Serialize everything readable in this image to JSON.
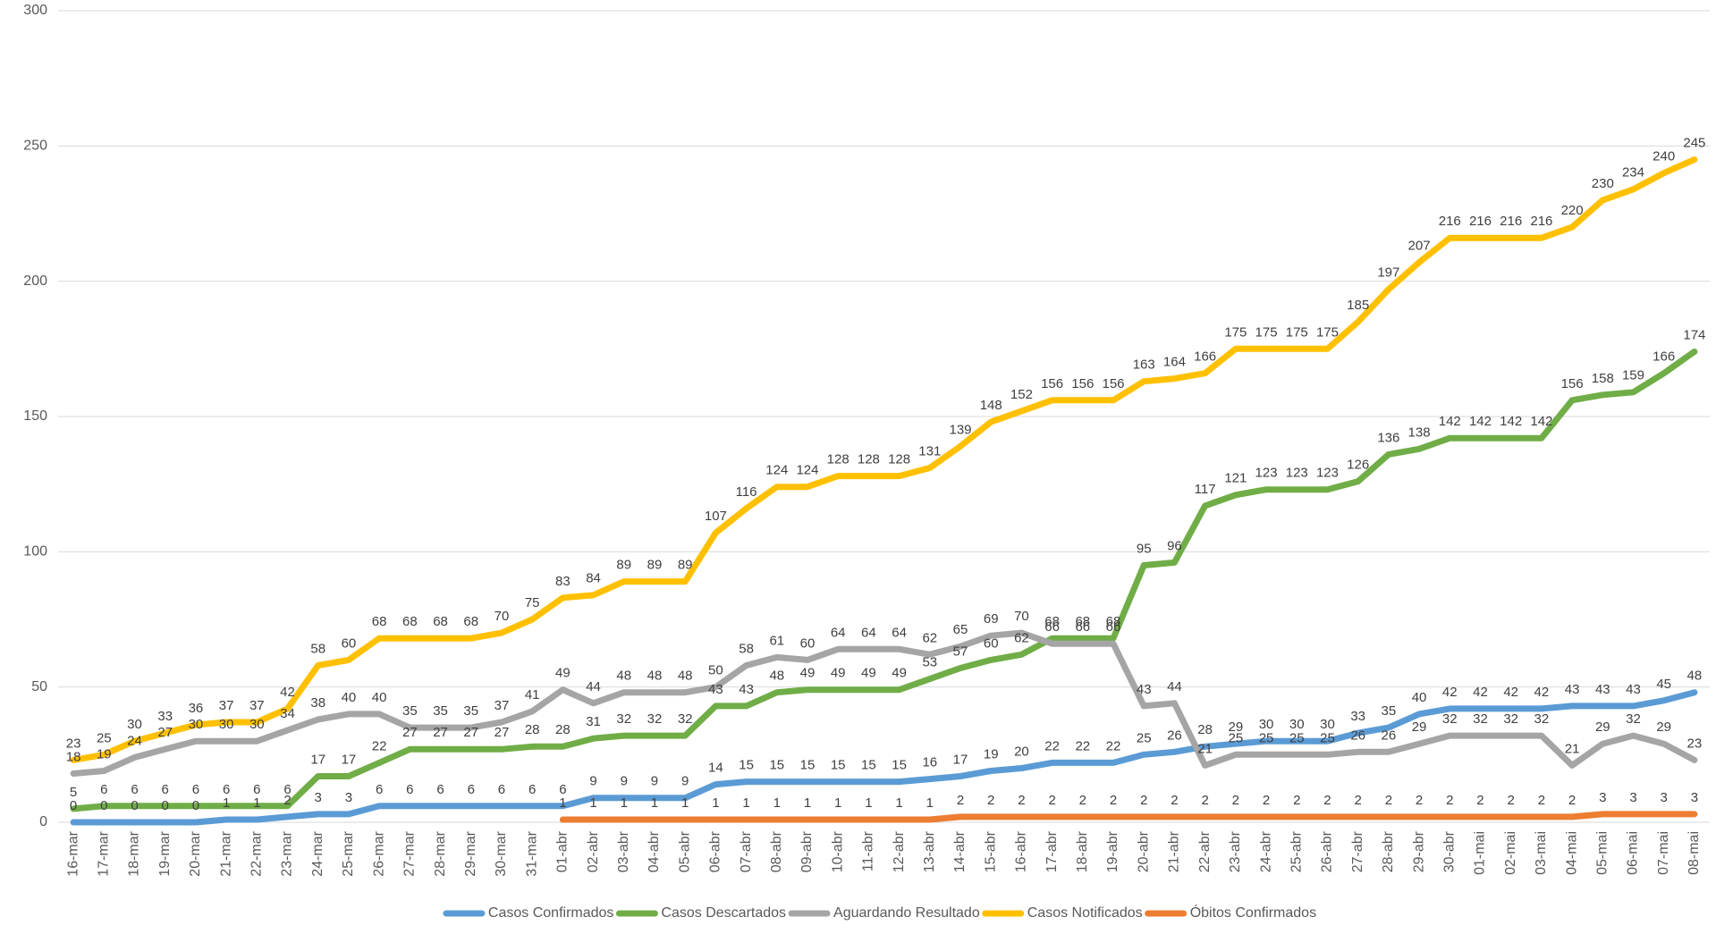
{
  "chart_data": {
    "type": "line",
    "categories": [
      "16-mar",
      "17-mar",
      "18-mar",
      "19-mar",
      "20-mar",
      "21-mar",
      "22-mar",
      "23-mar",
      "24-mar",
      "25-mar",
      "26-mar",
      "27-mar",
      "28-mar",
      "29-mar",
      "30-mar",
      "31-mar",
      "01-abr",
      "02-abr",
      "03-abr",
      "04-abr",
      "05-abr",
      "06-abr",
      "07-abr",
      "08-abr",
      "09-abr",
      "10-abr",
      "11-abr",
      "12-abr",
      "13-abr",
      "14-abr",
      "15-abr",
      "16-abr",
      "17-abr",
      "18-abr",
      "19-abr",
      "20-abr",
      "21-abr",
      "22-abr",
      "23-abr",
      "24-abr",
      "25-abr",
      "26-abr",
      "27-abr",
      "28-abr",
      "29-abr",
      "30-abr",
      "01-mai",
      "02-mai",
      "03-mai",
      "04-mai",
      "05-mai",
      "06-mai",
      "07-mai",
      "08-mai"
    ],
    "series": [
      {
        "name": "Casos Confirmados",
        "color": "#5b9bd5",
        "values": [
          0,
          0,
          0,
          0,
          0,
          1,
          1,
          2,
          3,
          3,
          6,
          6,
          6,
          6,
          6,
          6,
          6,
          9,
          9,
          9,
          9,
          14,
          15,
          15,
          15,
          15,
          15,
          15,
          16,
          17,
          19,
          20,
          22,
          22,
          22,
          25,
          26,
          28,
          29,
          30,
          30,
          30,
          33,
          35,
          40,
          42,
          42,
          42,
          42,
          43,
          43,
          43,
          45,
          48
        ]
      },
      {
        "name": "Casos Descartados",
        "color": "#70ad47",
        "values": [
          5,
          6,
          6,
          6,
          6,
          6,
          6,
          6,
          17,
          17,
          22,
          27,
          27,
          27,
          27,
          28,
          28,
          31,
          32,
          32,
          32,
          43,
          43,
          48,
          49,
          49,
          49,
          49,
          53,
          57,
          60,
          62,
          68,
          68,
          68,
          95,
          96,
          117,
          121,
          123,
          123,
          123,
          126,
          136,
          138,
          142,
          142,
          142,
          142,
          156,
          158,
          159,
          166,
          174
        ]
      },
      {
        "name": "Aguardando Resultado",
        "color": "#a5a5a5",
        "values": [
          18,
          19,
          24,
          27,
          30,
          30,
          30,
          34,
          38,
          40,
          40,
          35,
          35,
          35,
          37,
          41,
          49,
          44,
          48,
          48,
          48,
          50,
          58,
          61,
          60,
          64,
          64,
          64,
          62,
          65,
          69,
          70,
          66,
          66,
          66,
          43,
          44,
          21,
          25,
          25,
          25,
          25,
          26,
          26,
          29,
          32,
          32,
          32,
          32,
          21,
          29,
          32,
          29,
          23
        ]
      },
      {
        "name": "Casos Notificados",
        "color": "#ffc000",
        "values": [
          23,
          25,
          30,
          33,
          36,
          37,
          37,
          42,
          58,
          60,
          68,
          68,
          68,
          68,
          70,
          75,
          83,
          84,
          89,
          89,
          89,
          107,
          116,
          124,
          124,
          128,
          128,
          128,
          131,
          139,
          148,
          152,
          156,
          156,
          156,
          163,
          164,
          166,
          175,
          175,
          175,
          175,
          185,
          197,
          207,
          216,
          216,
          216,
          216,
          220,
          230,
          234,
          240,
          245
        ]
      },
      {
        "name": "Óbitos Confirmados",
        "color": "#ed7d31",
        "values": [
          null,
          null,
          null,
          null,
          null,
          null,
          null,
          null,
          null,
          null,
          null,
          null,
          null,
          null,
          null,
          null,
          1,
          1,
          1,
          1,
          1,
          1,
          1,
          1,
          1,
          1,
          1,
          1,
          1,
          2,
          2,
          2,
          2,
          2,
          2,
          2,
          2,
          2,
          2,
          2,
          2,
          2,
          2,
          2,
          2,
          2,
          2,
          2,
          2,
          2,
          3,
          3,
          3,
          3
        ]
      }
    ],
    "ylim": [
      0,
      300
    ],
    "yticks": [
      0,
      50,
      100,
      150,
      200,
      250,
      300
    ],
    "grid": true,
    "legend": "bottom"
  }
}
